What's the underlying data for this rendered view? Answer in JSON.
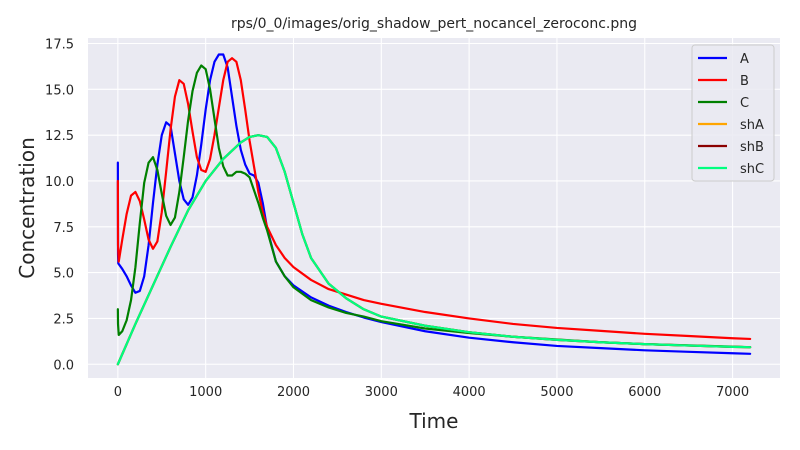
{
  "chart_data": {
    "type": "line",
    "title": "rps/0_0/images/orig_shadow_pert_nocancel_zeroconc.png",
    "xlabel": "Time",
    "ylabel": "Concentration",
    "xlim": [
      -340,
      7540
    ],
    "ylim": [
      -0.75,
      17.8
    ],
    "xticks": [
      0,
      1000,
      2000,
      3000,
      4000,
      5000,
      6000,
      7000
    ],
    "yticks": [
      0.0,
      2.5,
      5.0,
      7.5,
      10.0,
      12.5,
      15.0,
      17.5
    ],
    "ytick_labels": [
      "0.0",
      "2.5",
      "5.0",
      "7.5",
      "10.0",
      "12.5",
      "15.0",
      "17.5"
    ],
    "grid": true,
    "legend_position": "top-right",
    "series": [
      {
        "name": "A",
        "color": "#0000ff",
        "x": [
          0,
          2,
          5,
          50,
          100,
          150,
          200,
          250,
          300,
          350,
          400,
          450,
          500,
          550,
          600,
          650,
          700,
          750,
          800,
          850,
          900,
          950,
          1000,
          1050,
          1100,
          1150,
          1200,
          1250,
          1300,
          1350,
          1400,
          1450,
          1500,
          1550,
          1600,
          1650,
          1700,
          1800,
          1900,
          2000,
          2200,
          2400,
          2600,
          2800,
          3000,
          3500,
          4000,
          4500,
          5000,
          5500,
          6000,
          6500,
          7000,
          7200
        ],
        "y": [
          11.0,
          6.0,
          5.5,
          5.2,
          4.8,
          4.3,
          3.9,
          4.0,
          4.8,
          6.5,
          8.8,
          10.9,
          12.5,
          13.2,
          13.0,
          11.5,
          10.0,
          9.0,
          8.7,
          9.1,
          10.3,
          12.0,
          13.9,
          15.5,
          16.5,
          16.9,
          16.9,
          16.2,
          14.6,
          13.0,
          11.7,
          10.9,
          10.4,
          10.3,
          9.9,
          8.8,
          7.4,
          5.6,
          4.8,
          4.3,
          3.65,
          3.2,
          2.85,
          2.55,
          2.3,
          1.8,
          1.45,
          1.2,
          1.0,
          0.88,
          0.76,
          0.68,
          0.6,
          0.57
        ]
      },
      {
        "name": "B",
        "color": "#ff0000",
        "x": [
          0,
          2,
          10,
          50,
          100,
          150,
          200,
          250,
          300,
          350,
          400,
          450,
          500,
          550,
          600,
          650,
          700,
          750,
          800,
          850,
          900,
          950,
          1000,
          1050,
          1100,
          1150,
          1200,
          1250,
          1300,
          1350,
          1400,
          1450,
          1500,
          1550,
          1600,
          1650,
          1700,
          1800,
          1900,
          2000,
          2200,
          2400,
          2600,
          2800,
          3000,
          3500,
          4000,
          4500,
          5000,
          5500,
          6000,
          6500,
          7000,
          7200
        ],
        "y": [
          10.0,
          6.5,
          5.6,
          6.8,
          8.2,
          9.2,
          9.4,
          8.9,
          7.9,
          6.8,
          6.3,
          6.7,
          8.3,
          10.5,
          12.8,
          14.6,
          15.5,
          15.3,
          14.2,
          12.7,
          11.3,
          10.6,
          10.5,
          11.2,
          12.5,
          14.0,
          15.5,
          16.5,
          16.7,
          16.5,
          15.5,
          13.9,
          12.2,
          10.8,
          9.4,
          8.3,
          7.5,
          6.5,
          5.8,
          5.3,
          4.6,
          4.1,
          3.8,
          3.5,
          3.3,
          2.85,
          2.5,
          2.2,
          1.98,
          1.82,
          1.66,
          1.54,
          1.42,
          1.38
        ]
      },
      {
        "name": "C",
        "color": "#008000",
        "x": [
          0,
          2,
          10,
          50,
          100,
          150,
          200,
          250,
          300,
          350,
          400,
          450,
          500,
          550,
          600,
          650,
          700,
          750,
          800,
          850,
          900,
          950,
          1000,
          1050,
          1100,
          1150,
          1200,
          1250,
          1300,
          1350,
          1400,
          1450,
          1500,
          1550,
          1600,
          1650,
          1700,
          1800,
          1900,
          2000,
          2200,
          2400,
          2600,
          2800,
          3000,
          3500,
          4000,
          4500,
          5000,
          5500,
          6000,
          6500,
          7000,
          7200
        ],
        "y": [
          3.0,
          2.2,
          1.6,
          1.8,
          2.4,
          3.5,
          5.3,
          7.7,
          9.9,
          11.0,
          11.3,
          10.6,
          9.3,
          8.1,
          7.6,
          8.0,
          9.4,
          11.3,
          13.3,
          14.9,
          15.9,
          16.3,
          16.1,
          15.0,
          13.4,
          11.8,
          10.8,
          10.3,
          10.3,
          10.5,
          10.5,
          10.4,
          10.2,
          9.5,
          8.8,
          8.0,
          7.3,
          5.6,
          4.8,
          4.2,
          3.5,
          3.1,
          2.8,
          2.6,
          2.35,
          1.95,
          1.7,
          1.5,
          1.35,
          1.2,
          1.1,
          1.03,
          0.96,
          0.93
        ]
      },
      {
        "name": "shA",
        "color": "#ffa500",
        "x": [
          0,
          200,
          400,
          600,
          800,
          1000,
          1200,
          1400,
          1500,
          1600,
          1700,
          1800,
          1900,
          2000,
          2100,
          2200,
          2400,
          2600,
          2800,
          3000,
          3500,
          4000,
          4500,
          5000,
          5500,
          6000,
          6500,
          7000,
          7200
        ],
        "y": [
          0.0,
          2.2,
          4.3,
          6.4,
          8.4,
          10.0,
          11.2,
          12.1,
          12.4,
          12.5,
          12.4,
          11.8,
          10.5,
          8.8,
          7.1,
          5.8,
          4.4,
          3.6,
          3.0,
          2.6,
          2.1,
          1.75,
          1.5,
          1.33,
          1.2,
          1.1,
          1.02,
          0.95,
          0.93
        ]
      },
      {
        "name": "shB",
        "color": "#8b0000",
        "x": [
          0,
          200,
          400,
          600,
          800,
          1000,
          1200,
          1400,
          1500,
          1600,
          1700,
          1800,
          1900,
          2000,
          2100,
          2200,
          2400,
          2600,
          2800,
          3000,
          3500,
          4000,
          4500,
          5000,
          5500,
          6000,
          6500,
          7000,
          7200
        ],
        "y": [
          0.0,
          2.2,
          4.3,
          6.4,
          8.4,
          10.0,
          11.2,
          12.1,
          12.4,
          12.5,
          12.4,
          11.8,
          10.5,
          8.8,
          7.1,
          5.8,
          4.4,
          3.6,
          3.0,
          2.6,
          2.1,
          1.75,
          1.5,
          1.33,
          1.2,
          1.1,
          1.02,
          0.95,
          0.93
        ]
      },
      {
        "name": "shC",
        "color": "#00ff7f",
        "x": [
          0,
          200,
          400,
          600,
          800,
          1000,
          1200,
          1400,
          1500,
          1600,
          1700,
          1800,
          1900,
          2000,
          2100,
          2200,
          2400,
          2600,
          2800,
          3000,
          3500,
          4000,
          4500,
          5000,
          5500,
          6000,
          6500,
          7000,
          7200
        ],
        "y": [
          0.0,
          2.2,
          4.3,
          6.4,
          8.4,
          10.0,
          11.2,
          12.1,
          12.4,
          12.5,
          12.4,
          11.8,
          10.5,
          8.8,
          7.1,
          5.8,
          4.4,
          3.6,
          3.0,
          2.6,
          2.1,
          1.75,
          1.5,
          1.33,
          1.2,
          1.1,
          1.02,
          0.95,
          0.93
        ]
      }
    ]
  }
}
